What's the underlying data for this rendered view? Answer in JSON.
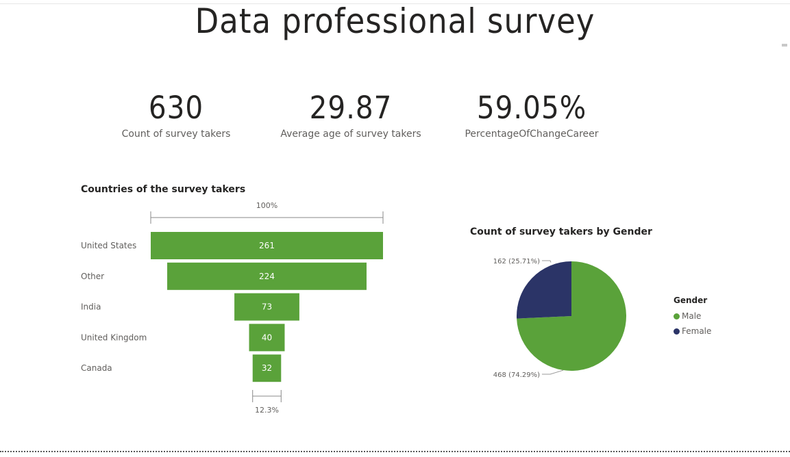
{
  "page": {
    "title": "Data professional survey"
  },
  "kpis": [
    {
      "value": "630",
      "label": "Count of survey takers"
    },
    {
      "value": "29.87",
      "label": "Average age of survey takers"
    },
    {
      "value": "59.05%",
      "label": "PercentageOfChangeCareer"
    }
  ],
  "funnel": {
    "title": "Countries of the survey takers",
    "top_pct_label": "100%",
    "bottom_pct_label": "12.3%",
    "bar_color": "#5aa23a"
  },
  "pie": {
    "title": "Count of survey takers by Gender",
    "legend_title": "Gender"
  },
  "chart_data": [
    {
      "type": "funnel",
      "title": "Countries of the survey takers",
      "categories": [
        "United States",
        "Other",
        "India",
        "United Kingdom",
        "Canada"
      ],
      "values": [
        261,
        224,
        73,
        40,
        32
      ],
      "value_labels": [
        "261",
        "224",
        "73",
        "40",
        "32"
      ],
      "first_stage_pct": "100%",
      "last_stage_pct": "12.3%",
      "color": "#5aa23a"
    },
    {
      "type": "pie",
      "title": "Count of survey takers by Gender",
      "legend_title": "Gender",
      "categories": [
        "Male",
        "Female"
      ],
      "values": [
        468,
        162
      ],
      "data_labels": [
        "468 (74.29%)",
        "162 (25.71%)"
      ],
      "colors": [
        "#5aa23a",
        "#2b3467"
      ],
      "legend_position": "right"
    }
  ]
}
